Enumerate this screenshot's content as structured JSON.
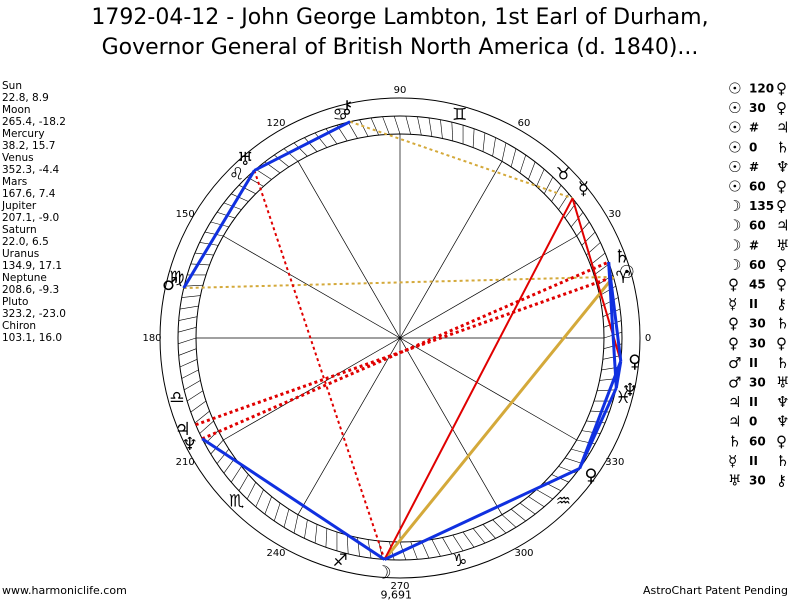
{
  "header": {
    "title": [
      "1792-04-12 - John George Lambton, 1st Earl of Durham,",
      "Governor General of British North America (d. 1840)..."
    ]
  },
  "planets": [
    {
      "name": "Sun",
      "coords": "22.8, 8.9"
    },
    {
      "name": "Moon",
      "coords": "265.4, -18.2"
    },
    {
      "name": "Mercury",
      "coords": "38.2, 15.7"
    },
    {
      "name": "Venus",
      "coords": "352.3, -4.4"
    },
    {
      "name": "Mars",
      "coords": "167.6, 7.4"
    },
    {
      "name": "Jupiter",
      "coords": "207.1, -9.0"
    },
    {
      "name": "Saturn",
      "coords": "22.0, 6.5"
    },
    {
      "name": "Uranus",
      "coords": "134.9, 17.1"
    },
    {
      "name": "Neptune",
      "coords": "208.6, -9.3"
    },
    {
      "name": "Pluto",
      "coords": "323.2, -23.0"
    },
    {
      "name": "Chiron",
      "coords": "103.1, 16.0"
    }
  ],
  "aspects": [
    [
      "☉",
      "120",
      "♀"
    ],
    [
      "☉",
      "30",
      "♀"
    ],
    [
      "☉",
      "#",
      "♃"
    ],
    [
      "☉",
      "0",
      "♄"
    ],
    [
      "☉",
      "#",
      "♆"
    ],
    [
      "☉",
      "60",
      "♀"
    ],
    [
      "☽",
      "135",
      "♀"
    ],
    [
      "☽",
      "60",
      "♃"
    ],
    [
      "☽",
      "#",
      "♅"
    ],
    [
      "☽",
      "60",
      "♀"
    ],
    [
      "♀",
      "45",
      "♀"
    ],
    [
      "☿",
      "II",
      "⚷"
    ],
    [
      "♀",
      "30",
      "♄"
    ],
    [
      "♀",
      "30",
      "♀"
    ],
    [
      "♂",
      "II",
      "♄"
    ],
    [
      "♂",
      "30",
      "♅"
    ],
    [
      "♃",
      "II",
      "♆"
    ],
    [
      "♃",
      "0",
      "♆"
    ],
    [
      "♄",
      "60",
      "♀"
    ],
    [
      "☿",
      "II",
      "♄"
    ],
    [
      "♅",
      "30",
      "⚷"
    ]
  ],
  "wheel": {
    "degree_labels": [
      "0",
      "30",
      "60",
      "90",
      "120",
      "150",
      "180",
      "210",
      "240",
      "270",
      "300",
      "330"
    ],
    "signs": [
      "♈",
      "♉",
      "♊",
      "♋",
      "♌",
      "♍",
      "♎",
      "♏",
      "♐",
      "♑",
      "♒",
      "♓"
    ],
    "planet_glyphs": [
      "⚷",
      "♅",
      "♂",
      "♃",
      "♆",
      "☽",
      "♀",
      "♀",
      "♆",
      "☉",
      "♄",
      "☿"
    ],
    "moon_note": "9,691"
  },
  "footer": {
    "left": "www.harmoniclife.com",
    "right": "AstroChart Patent Pending"
  }
}
